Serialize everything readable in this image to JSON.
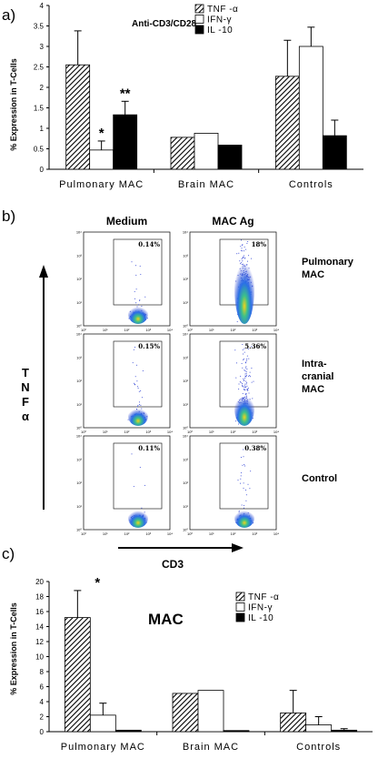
{
  "figure_panels": {
    "a": "a)",
    "b": "b)",
    "c": "c)"
  },
  "chart_data": [
    {
      "type": "bar",
      "panel": "a",
      "title": "Anti-CD3/CD28",
      "ylabel": "% Expression in T-Cells",
      "xlabel": "",
      "ylim": [
        0,
        4
      ],
      "yticks": [
        "0",
        "0.5",
        "1",
        "1.5",
        "2",
        "2.5",
        "3",
        "3.5",
        "4"
      ],
      "categories": [
        "Pulmonary MAC",
        "Brain MAC",
        "Controls"
      ],
      "series": [
        {
          "name": "TNF -α",
          "values": [
            2.55,
            0.78,
            2.27
          ],
          "errors": [
            0.83,
            0,
            0.88
          ],
          "fill": "hatch"
        },
        {
          "name": "IFN-γ",
          "values": [
            0.47,
            0.88,
            3.0
          ],
          "errors": [
            0.22,
            0,
            0.47
          ],
          "fill": "#ffffff"
        },
        {
          "name": "IL -10",
          "values": [
            1.33,
            0.59,
            0.82
          ],
          "errors": [
            0.33,
            0,
            0.38
          ],
          "fill": "#000000"
        }
      ],
      "annotations": [
        {
          "text": "*",
          "category": 0,
          "series": 1
        },
        {
          "text": "**",
          "category": 0,
          "series": 2
        }
      ],
      "legend_position": "top-right",
      "grid": false
    },
    {
      "type": "bar",
      "panel": "c",
      "title": "MAC",
      "ylabel": "% Expression in T-Cells",
      "xlabel": "",
      "ylim": [
        0,
        20
      ],
      "yticks": [
        "0",
        "2",
        "4",
        "6",
        "8",
        "10",
        "12",
        "14",
        "16",
        "18",
        "20"
      ],
      "categories": [
        "Pulmonary MAC",
        "Brain MAC",
        "Controls"
      ],
      "series": [
        {
          "name": "TNF -α",
          "values": [
            15.2,
            5.1,
            2.5
          ],
          "errors": [
            3.6,
            0,
            3.0
          ],
          "fill": "hatch"
        },
        {
          "name": "IFN-γ",
          "values": [
            2.2,
            5.5,
            0.9
          ],
          "errors": [
            1.6,
            0,
            1.1
          ],
          "fill": "#ffffff"
        },
        {
          "name": "IL -10",
          "values": [
            0.2,
            0.15,
            0.2
          ],
          "errors": [
            0,
            0,
            0.2
          ],
          "fill": "#000000"
        }
      ],
      "annotations": [
        {
          "text": "*",
          "category": 0,
          "series": 0
        }
      ],
      "legend_position": "top-right",
      "grid": false
    },
    {
      "type": "scatter",
      "panel": "b",
      "subtype": "flow-cytometry-density-plots",
      "columns": [
        "Medium",
        "MAC Ag"
      ],
      "rows": [
        "Pulmonary MAC",
        "Intra-cranial MAC",
        "Control"
      ],
      "row_labels": [
        [
          "Pulmonary",
          "MAC"
        ],
        [
          "Intra-",
          "cranial",
          "MAC"
        ],
        [
          "Control"
        ]
      ],
      "gate_percentages": [
        [
          "0.14%",
          "18%"
        ],
        [
          "0.15%",
          "5.36%"
        ],
        [
          "0.11%",
          "0.38%"
        ]
      ],
      "xlabel": "CD3",
      "ylabel_letters": [
        "T",
        "N",
        "F",
        "α"
      ],
      "axis_tick_labels": [
        "10⁰",
        "10¹",
        "10²",
        "10³",
        "10⁴"
      ]
    }
  ]
}
